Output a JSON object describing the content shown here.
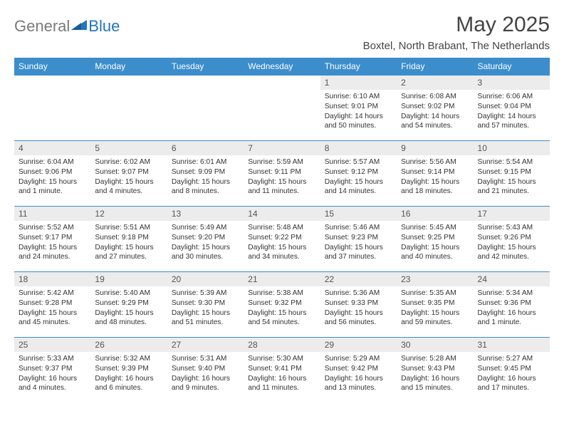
{
  "logo": {
    "general": "General",
    "blue": "Blue"
  },
  "title": "May 2025",
  "location": "Boxtel, North Brabant, The Netherlands",
  "colors": {
    "header_bg": "#3c8dcc",
    "header_text": "#ffffff",
    "daynum_bg": "#ececec",
    "border": "#3c8dcc",
    "text": "#333333",
    "logo_gray": "#7a7a7a",
    "logo_blue": "#2176bd"
  },
  "typography": {
    "title_fontsize": 30,
    "location_fontsize": 15,
    "header_fontsize": 12,
    "daynum_fontsize": 12,
    "detail_fontsize": 10.2
  },
  "weekdays": [
    "Sunday",
    "Monday",
    "Tuesday",
    "Wednesday",
    "Thursday",
    "Friday",
    "Saturday"
  ],
  "weeks": [
    [
      {
        "day": "",
        "sunrise": "",
        "sunset": "",
        "daylight": ""
      },
      {
        "day": "",
        "sunrise": "",
        "sunset": "",
        "daylight": ""
      },
      {
        "day": "",
        "sunrise": "",
        "sunset": "",
        "daylight": ""
      },
      {
        "day": "",
        "sunrise": "",
        "sunset": "",
        "daylight": ""
      },
      {
        "day": "1",
        "sunrise": "Sunrise: 6:10 AM",
        "sunset": "Sunset: 9:01 PM",
        "daylight": "Daylight: 14 hours and 50 minutes."
      },
      {
        "day": "2",
        "sunrise": "Sunrise: 6:08 AM",
        "sunset": "Sunset: 9:02 PM",
        "daylight": "Daylight: 14 hours and 54 minutes."
      },
      {
        "day": "3",
        "sunrise": "Sunrise: 6:06 AM",
        "sunset": "Sunset: 9:04 PM",
        "daylight": "Daylight: 14 hours and 57 minutes."
      }
    ],
    [
      {
        "day": "4",
        "sunrise": "Sunrise: 6:04 AM",
        "sunset": "Sunset: 9:06 PM",
        "daylight": "Daylight: 15 hours and 1 minute."
      },
      {
        "day": "5",
        "sunrise": "Sunrise: 6:02 AM",
        "sunset": "Sunset: 9:07 PM",
        "daylight": "Daylight: 15 hours and 4 minutes."
      },
      {
        "day": "6",
        "sunrise": "Sunrise: 6:01 AM",
        "sunset": "Sunset: 9:09 PM",
        "daylight": "Daylight: 15 hours and 8 minutes."
      },
      {
        "day": "7",
        "sunrise": "Sunrise: 5:59 AM",
        "sunset": "Sunset: 9:11 PM",
        "daylight": "Daylight: 15 hours and 11 minutes."
      },
      {
        "day": "8",
        "sunrise": "Sunrise: 5:57 AM",
        "sunset": "Sunset: 9:12 PM",
        "daylight": "Daylight: 15 hours and 14 minutes."
      },
      {
        "day": "9",
        "sunrise": "Sunrise: 5:56 AM",
        "sunset": "Sunset: 9:14 PM",
        "daylight": "Daylight: 15 hours and 18 minutes."
      },
      {
        "day": "10",
        "sunrise": "Sunrise: 5:54 AM",
        "sunset": "Sunset: 9:15 PM",
        "daylight": "Daylight: 15 hours and 21 minutes."
      }
    ],
    [
      {
        "day": "11",
        "sunrise": "Sunrise: 5:52 AM",
        "sunset": "Sunset: 9:17 PM",
        "daylight": "Daylight: 15 hours and 24 minutes."
      },
      {
        "day": "12",
        "sunrise": "Sunrise: 5:51 AM",
        "sunset": "Sunset: 9:18 PM",
        "daylight": "Daylight: 15 hours and 27 minutes."
      },
      {
        "day": "13",
        "sunrise": "Sunrise: 5:49 AM",
        "sunset": "Sunset: 9:20 PM",
        "daylight": "Daylight: 15 hours and 30 minutes."
      },
      {
        "day": "14",
        "sunrise": "Sunrise: 5:48 AM",
        "sunset": "Sunset: 9:22 PM",
        "daylight": "Daylight: 15 hours and 34 minutes."
      },
      {
        "day": "15",
        "sunrise": "Sunrise: 5:46 AM",
        "sunset": "Sunset: 9:23 PM",
        "daylight": "Daylight: 15 hours and 37 minutes."
      },
      {
        "day": "16",
        "sunrise": "Sunrise: 5:45 AM",
        "sunset": "Sunset: 9:25 PM",
        "daylight": "Daylight: 15 hours and 40 minutes."
      },
      {
        "day": "17",
        "sunrise": "Sunrise: 5:43 AM",
        "sunset": "Sunset: 9:26 PM",
        "daylight": "Daylight: 15 hours and 42 minutes."
      }
    ],
    [
      {
        "day": "18",
        "sunrise": "Sunrise: 5:42 AM",
        "sunset": "Sunset: 9:28 PM",
        "daylight": "Daylight: 15 hours and 45 minutes."
      },
      {
        "day": "19",
        "sunrise": "Sunrise: 5:40 AM",
        "sunset": "Sunset: 9:29 PM",
        "daylight": "Daylight: 15 hours and 48 minutes."
      },
      {
        "day": "20",
        "sunrise": "Sunrise: 5:39 AM",
        "sunset": "Sunset: 9:30 PM",
        "daylight": "Daylight: 15 hours and 51 minutes."
      },
      {
        "day": "21",
        "sunrise": "Sunrise: 5:38 AM",
        "sunset": "Sunset: 9:32 PM",
        "daylight": "Daylight: 15 hours and 54 minutes."
      },
      {
        "day": "22",
        "sunrise": "Sunrise: 5:36 AM",
        "sunset": "Sunset: 9:33 PM",
        "daylight": "Daylight: 15 hours and 56 minutes."
      },
      {
        "day": "23",
        "sunrise": "Sunrise: 5:35 AM",
        "sunset": "Sunset: 9:35 PM",
        "daylight": "Daylight: 15 hours and 59 minutes."
      },
      {
        "day": "24",
        "sunrise": "Sunrise: 5:34 AM",
        "sunset": "Sunset: 9:36 PM",
        "daylight": "Daylight: 16 hours and 1 minute."
      }
    ],
    [
      {
        "day": "25",
        "sunrise": "Sunrise: 5:33 AM",
        "sunset": "Sunset: 9:37 PM",
        "daylight": "Daylight: 16 hours and 4 minutes."
      },
      {
        "day": "26",
        "sunrise": "Sunrise: 5:32 AM",
        "sunset": "Sunset: 9:39 PM",
        "daylight": "Daylight: 16 hours and 6 minutes."
      },
      {
        "day": "27",
        "sunrise": "Sunrise: 5:31 AM",
        "sunset": "Sunset: 9:40 PM",
        "daylight": "Daylight: 16 hours and 9 minutes."
      },
      {
        "day": "28",
        "sunrise": "Sunrise: 5:30 AM",
        "sunset": "Sunset: 9:41 PM",
        "daylight": "Daylight: 16 hours and 11 minutes."
      },
      {
        "day": "29",
        "sunrise": "Sunrise: 5:29 AM",
        "sunset": "Sunset: 9:42 PM",
        "daylight": "Daylight: 16 hours and 13 minutes."
      },
      {
        "day": "30",
        "sunrise": "Sunrise: 5:28 AM",
        "sunset": "Sunset: 9:43 PM",
        "daylight": "Daylight: 16 hours and 15 minutes."
      },
      {
        "day": "31",
        "sunrise": "Sunrise: 5:27 AM",
        "sunset": "Sunset: 9:45 PM",
        "daylight": "Daylight: 16 hours and 17 minutes."
      }
    ]
  ]
}
